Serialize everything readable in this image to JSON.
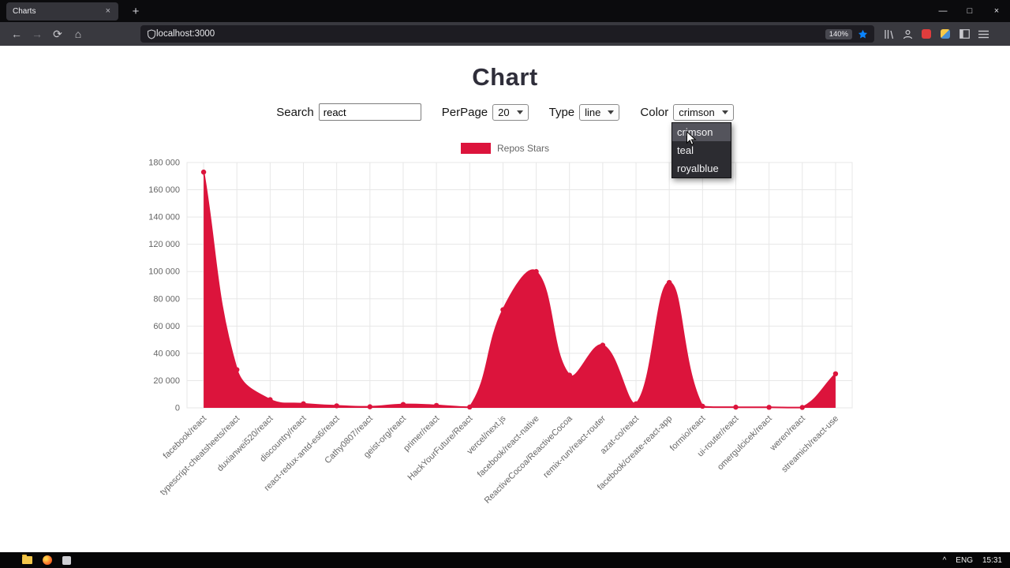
{
  "browser": {
    "tab_title": "Charts",
    "tab_close_glyph": "×",
    "new_tab_glyph": "+",
    "window_controls": {
      "minimize": "—",
      "maximize": "□",
      "close": "×"
    },
    "nav_icons": {
      "back": "←",
      "forward": "→",
      "reload": "⟳",
      "home": "⌂"
    },
    "url": "localhost:3000",
    "zoom_badge": "140%"
  },
  "taskbar": {
    "tray_caret": "^",
    "language": "ENG",
    "time": "15:31"
  },
  "page": {
    "title": "Chart",
    "controls": {
      "search_label": "Search",
      "search_value": "react",
      "perpage_label": "PerPage",
      "perpage_value": "20",
      "type_label": "Type",
      "type_value": "line",
      "color_label": "Color",
      "color_value": "crimson",
      "color_options": [
        "crimson",
        "teal",
        "royalblue"
      ]
    },
    "legend_label": "Repos Stars"
  },
  "chart_data": {
    "type": "area",
    "title": "",
    "legend": [
      "Repos Stars"
    ],
    "legend_position": "top",
    "series_color": "#DC143C",
    "grid": true,
    "categories": [
      "facebook/react",
      "typescript-cheatsheets/react",
      "duxianwei520/react",
      "discountry/react",
      "react-redux-antd-es6/react",
      "Cathy0807/react",
      "geist-org/react",
      "primer/react",
      "HackYourFuture/React",
      "vercel/next.js",
      "facebook/react-native",
      "ReactiveCocoa/ReactiveCocoa",
      "remix-run/react-router",
      "azat-co/react",
      "facebook/create-react-app",
      "formio/react",
      "ui-router/react",
      "omergulcicek/react",
      "weren/react",
      "streamich/react-use"
    ],
    "values": [
      173000,
      28000,
      6000,
      3000,
      1500,
      800,
      2500,
      1800,
      600,
      72000,
      100000,
      24000,
      46000,
      3000,
      92000,
      1200,
      500,
      400,
      300,
      25000
    ],
    "ylim": [
      0,
      180000
    ],
    "y_ticks": [
      0,
      20000,
      40000,
      60000,
      80000,
      100000,
      120000,
      140000,
      160000,
      180000
    ],
    "y_tick_labels": [
      "0",
      "20 000",
      "40 000",
      "60 000",
      "80 000",
      "100 000",
      "120 000",
      "140 000",
      "160 000",
      "180 000"
    ],
    "x_label_rotation": -45
  }
}
